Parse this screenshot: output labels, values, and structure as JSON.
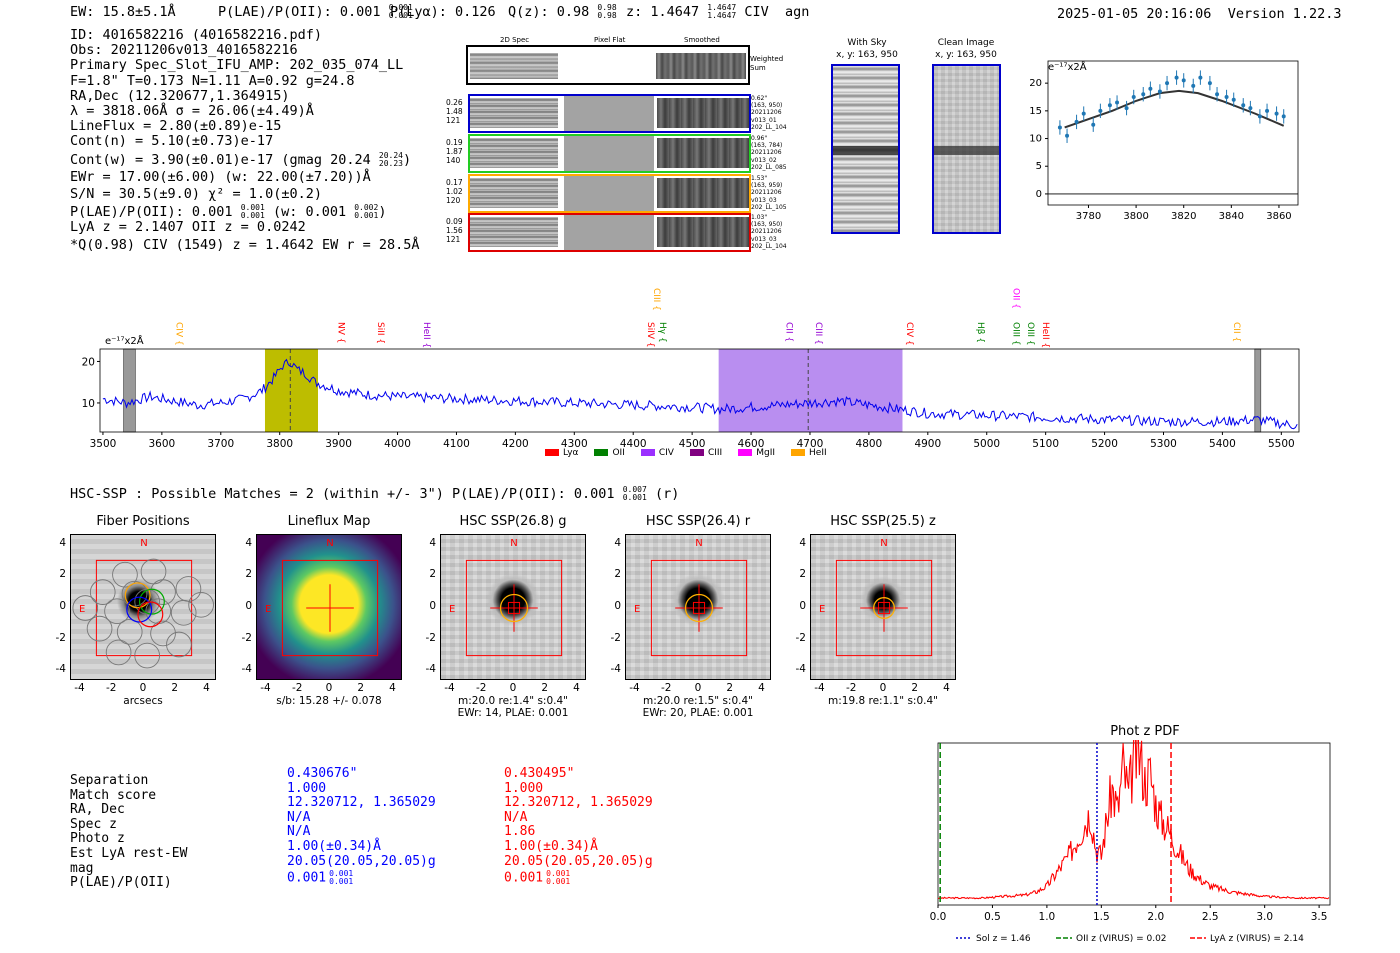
{
  "header": {
    "ew": "EW: 15.8±5.1Å",
    "plae_label": "P(LAE)/P(OII): 0.001",
    "plae_sup": "0.001",
    "plae_sub": "0.001",
    "plya": "P(Lyα): 0.126",
    "qz_label": "Q(z): 0.98",
    "qz_sup": "0.98",
    "qz_sub": "0.98",
    "z_label": "z: 1.4647",
    "z_sup": "1.4647",
    "z_sub": "1.4647",
    "line": "CIV",
    "classification": "agn",
    "timestamp": "2025-01-05 20:16:06",
    "version": "Version 1.22.3"
  },
  "info": {
    "lines": [
      "ID: 4016582216 (4016582216.pdf)",
      "Obs: 20211206v013_4016582216",
      "Primary Spec_Slot_IFU_AMP: 202_035_074_LL",
      "F=1.8\"  T=0.173  N=1.11  A=0.92  g=24.8",
      "RA,Dec (12.320677,1.364915)",
      "λ = 3818.06Å  σ = 26.06(±4.49)Å",
      "LineFlux = 2.80(±0.89)e-15",
      "Cont(n) = 5.10(±0.73)e-17"
    ],
    "contw": "Cont(w) = 3.90(±0.01)e-17 (gmag 20.24",
    "contw_sup": "20.24",
    "contw_sub": "20.23",
    "contw_close": ")",
    "ewr": "EWr = 17.00(±6.00) (w: 22.00(±7.20))Å",
    "sn": "S/N = 30.5(±9.0)  χ² = 1.0(±0.2)",
    "plae": "P(LAE)/P(OII): 0.001",
    "plae_sup": "0.001",
    "plae_sub": "0.001",
    "plae_w": "(w: 0.001",
    "plae_w_sup": "0.002",
    "plae_w_sub": "0.001",
    "plae_w_close": ")",
    "lya_z": "LyA z = 2.1407  OII z = 0.0242",
    "civ": "*Q(0.98) CIV (1549) z = 1.4642  EW r = 28.5Å"
  },
  "cutouts": {
    "col_titles": [
      "2D Spec",
      "Pixel Flat",
      "Smoothed"
    ],
    "weighted_sum": "Weighted Sum",
    "rows": [
      {
        "color": "#0000cc",
        "left": [
          "0.26",
          "1.48",
          "121"
        ],
        "right": [
          "0.62\"",
          "(163, 950)",
          "20211206",
          "v013_01",
          "202_LL_104"
        ]
      },
      {
        "color": "#22cc22",
        "left": [
          "0.19",
          "1.87",
          "140"
        ],
        "right": [
          "0.96\"",
          "(163, 784)",
          "20211206",
          "v013_02",
          "202_LL_085"
        ]
      },
      {
        "color": "#ffaa00",
        "left": [
          "0.17",
          "1.02",
          "120"
        ],
        "right": [
          "1.53\"",
          "(163, 959)",
          "20211206",
          "v013_03",
          "202_LL_105"
        ]
      },
      {
        "color": "#dd0000",
        "left": [
          "0.09",
          "1.56",
          "121"
        ],
        "right": [
          "1.03\"",
          "(163, 950)",
          "20211206",
          "v013_03",
          "202_LL_104"
        ]
      }
    ],
    "with_sky_title": "With Sky",
    "with_sky_coords": "x, y: 163, 950",
    "clean_title": "Clean Image",
    "clean_coords": "x, y: 163, 950"
  },
  "zoom_plot": {
    "ylabel": "e⁻¹⁷x2Å",
    "chart_data": {
      "type": "scatter",
      "x": [
        3768,
        3771,
        3775,
        3778,
        3782,
        3785,
        3789,
        3792,
        3796,
        3799,
        3803,
        3806,
        3810,
        3813,
        3817,
        3820,
        3824,
        3827,
        3831,
        3834,
        3838,
        3841,
        3845,
        3848,
        3852,
        3855,
        3859,
        3862
      ],
      "y": [
        12,
        10.5,
        13,
        14.5,
        12.5,
        15,
        16,
        16.5,
        15.5,
        17.5,
        18,
        19,
        18.5,
        20,
        21,
        20.5,
        19.5,
        21,
        20,
        18,
        17.5,
        17,
        16,
        15.5,
        14,
        15,
        14.5,
        14
      ],
      "model_x": [
        3770,
        3790,
        3800,
        3810,
        3818,
        3826,
        3836,
        3850,
        3862
      ],
      "model_y": [
        12,
        15,
        16.8,
        18.2,
        18.6,
        18.2,
        16.8,
        14.5,
        12.3
      ],
      "xticks": [
        3780,
        3800,
        3820,
        3840,
        3860
      ],
      "yticks": [
        0,
        5,
        10,
        15,
        20
      ],
      "xlim": [
        3763,
        3868
      ],
      "ylim": [
        -2,
        24
      ]
    }
  },
  "spectrum": {
    "ylabel": "e⁻¹⁷x2Å",
    "line_labels": [
      {
        "name": "CIV",
        "x": 3620,
        "color": "#ffa500",
        "row": 1
      },
      {
        "name": "NV",
        "x": 3895,
        "color": "#ff0000",
        "row": 1
      },
      {
        "name": "SiII",
        "x": 3962,
        "color": "#ff0000",
        "row": 1
      },
      {
        "name": "HeII",
        "x": 4040,
        "color": "#9400d3",
        "row": 1
      },
      {
        "name": "SiIV",
        "x": 4420,
        "color": "#ff0000",
        "row": 1
      },
      {
        "name": "CIII",
        "x": 4430,
        "color": "#ffa500",
        "row": 0
      },
      {
        "name": "Hγ",
        "x": 4440,
        "color": "#008000",
        "row": 1
      },
      {
        "name": "CII",
        "x": 4655,
        "color": "#9400d3",
        "row": 1
      },
      {
        "name": "CIII",
        "x": 4705,
        "color": "#9400d3",
        "row": 1
      },
      {
        "name": "CIV",
        "x": 4860,
        "color": "#ff0000",
        "row": 1
      },
      {
        "name": "Hβ",
        "x": 4980,
        "color": "#008000",
        "row": 1
      },
      {
        "name": "OIII",
        "x": 5040,
        "color": "#008000",
        "row": 1
      },
      {
        "name": "OII",
        "x": 5040,
        "color": "#ff00ff",
        "row": 0
      },
      {
        "name": "OIII",
        "x": 5065,
        "color": "#008000",
        "row": 1
      },
      {
        "name": "HeII",
        "x": 5090,
        "color": "#ff0000",
        "row": 1
      },
      {
        "name": "CII",
        "x": 5415,
        "color": "#ffa500",
        "row": 1
      }
    ],
    "legend": [
      {
        "name": "Lyα",
        "color": "#ff0000"
      },
      {
        "name": "OII",
        "color": "#008000"
      },
      {
        "name": "CIV",
        "color": "#9b30ff"
      },
      {
        "name": "CIII",
        "color": "#800080"
      },
      {
        "name": "MgII",
        "color": "#ff00ff"
      },
      {
        "name": "HeII",
        "color": "#ffa500"
      }
    ],
    "chart_data": {
      "type": "line",
      "xlim": [
        3495,
        5530
      ],
      "ylim": [
        3,
        23
      ],
      "xticks": [
        3500,
        3600,
        3700,
        3800,
        3900,
        4000,
        4100,
        4200,
        4300,
        4400,
        4500,
        4600,
        4700,
        4800,
        4900,
        5000,
        5100,
        5200,
        5300,
        5400,
        5500
      ],
      "yticks": [
        10,
        20
      ],
      "x": [
        3500,
        3540,
        3580,
        3620,
        3660,
        3700,
        3740,
        3770,
        3790,
        3805,
        3818,
        3830,
        3845,
        3860,
        3880,
        3900,
        3950,
        4000,
        4100,
        4200,
        4300,
        4400,
        4500,
        4550,
        4600,
        4650,
        4700,
        4750,
        4800,
        4850,
        4900,
        5000,
        5100,
        5200,
        5300,
        5400,
        5460,
        5500,
        5530
      ],
      "y": [
        11,
        10,
        11.5,
        10.5,
        9.5,
        10,
        11,
        13,
        16,
        19,
        20,
        18,
        17,
        15,
        14,
        13,
        12,
        11.5,
        11,
        10.5,
        10,
        9.5,
        9,
        8.5,
        9,
        9.5,
        10,
        10.5,
        9.5,
        8.5,
        7.5,
        7,
        6.5,
        6,
        5.5,
        5.5,
        6,
        5,
        4.5
      ],
      "highlight_regions": [
        {
          "from": 3775,
          "to": 3865,
          "color": "#bdbd00"
        },
        {
          "from": 4545,
          "to": 4857,
          "color": "#b98ef0"
        }
      ],
      "masked_regions": [
        [
          3535,
          3555
        ],
        [
          5455,
          5465
        ]
      ],
      "marker_lines": [
        3818,
        4697
      ]
    }
  },
  "hsc": {
    "title": "HSC-SSP : Possible Matches = 2 (within +/- 3\")  P(LAE)/P(OII): 0.001",
    "title_sup": "0.007",
    "title_sub": "0.001",
    "title_tail": "(r)",
    "panels": [
      {
        "title": "Fiber Positions",
        "caption": "arcsecs",
        "caption2": ""
      },
      {
        "title": "Lineflux Map",
        "caption": "s/b: 15.28 +/- 0.078",
        "caption2": ""
      },
      {
        "title": "HSC SSP(26.8) g",
        "caption": "m:20.0  re:1.4\"  s:0.4\"",
        "caption2": "EWr: 14, PLAE: 0.001"
      },
      {
        "title": "HSC SSP(26.4) r",
        "caption": "m:20.0  re:1.5\"  s:0.4\"",
        "caption2": "EWr: 20, PLAE: 0.001"
      },
      {
        "title": "HSC SSP(25.5) z",
        "caption": "m:19.8  re:1.1\"  s:0.4\"",
        "caption2": ""
      }
    ],
    "ticks": [
      "-4",
      "-2",
      "0",
      "2",
      "4"
    ],
    "n_label": "N",
    "e_label": "E"
  },
  "matches": {
    "labels": [
      "Separation",
      "Match score",
      "RA, Dec",
      "Spec z",
      "Photo z",
      "Est LyA rest-EW",
      "mag",
      "P(LAE)/P(OII)"
    ],
    "blue": [
      "0.430676\"",
      "1.000",
      "12.320712, 1.365029",
      "N/A",
      "N/A",
      "1.00(±0.34)Å",
      "20.05(20.05,20.05)g",
      "0.001"
    ],
    "blue_plae_sup": "0.001",
    "blue_plae_sub": "0.001",
    "red": [
      "0.430495\"",
      "1.000",
      "12.320712, 1.365029",
      "N/A",
      "1.86",
      "1.00(±0.34)Å",
      "20.05(20.05,20.05)g",
      "0.001"
    ],
    "red_plae_sup": "0.001",
    "red_plae_sub": "0.001"
  },
  "photz": {
    "title": "Phot z PDF",
    "legend": [
      {
        "label": "Sol z = 1.46",
        "color": "#0000cc",
        "style": "dotted"
      },
      {
        "label": "OII z (VIRUS) = 0.02",
        "color": "#008000",
        "style": "dashed"
      },
      {
        "label": "LyA z (VIRUS) = 2.14",
        "color": "#ff0000",
        "style": "dashed"
      }
    ],
    "chart_data": {
      "type": "line",
      "xlim": [
        0,
        3.6
      ],
      "ylim": [
        0,
        1
      ],
      "xticks": [
        0.0,
        0.5,
        1.0,
        1.5,
        2.0,
        2.5,
        3.0,
        3.5
      ],
      "x": [
        0.0,
        0.4,
        0.8,
        0.9,
        1.0,
        1.1,
        1.2,
        1.3,
        1.4,
        1.45,
        1.5,
        1.55,
        1.6,
        1.65,
        1.7,
        1.75,
        1.8,
        1.85,
        1.9,
        1.95,
        2.0,
        2.05,
        2.1,
        2.2,
        2.3,
        2.4,
        2.5,
        2.7,
        3.0,
        3.3,
        3.6
      ],
      "y": [
        0.02,
        0.02,
        0.04,
        0.06,
        0.1,
        0.2,
        0.3,
        0.45,
        0.6,
        0.35,
        0.3,
        0.55,
        0.75,
        0.6,
        0.9,
        0.7,
        0.95,
        0.98,
        0.8,
        0.85,
        0.65,
        0.55,
        0.5,
        0.35,
        0.22,
        0.15,
        0.1,
        0.06,
        0.03,
        0.02,
        0.02
      ],
      "vlines": [
        1.46,
        0.02,
        2.14
      ]
    }
  }
}
